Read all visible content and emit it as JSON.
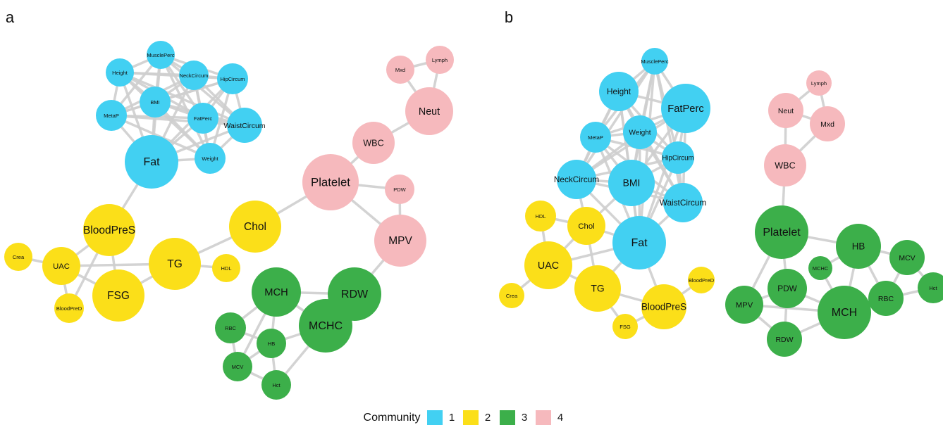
{
  "panels": [
    {
      "label": "a",
      "nodes": [
        {
          "label": "MusclePerc",
          "group": "1"
        },
        {
          "label": "Height",
          "group": "1"
        },
        {
          "label": "NeckCircum",
          "group": "1"
        },
        {
          "label": "HipCircum",
          "group": "1"
        },
        {
          "label": "BMI",
          "group": "1"
        },
        {
          "label": "MetaP",
          "group": "1"
        },
        {
          "label": "FatPerc",
          "group": "1"
        },
        {
          "label": "WaistCircum",
          "group": "1"
        },
        {
          "label": "Weight",
          "group": "1"
        },
        {
          "label": "Fat",
          "group": "1"
        },
        {
          "label": "BloodPreS",
          "group": "2"
        },
        {
          "label": "Crea",
          "group": "2"
        },
        {
          "label": "UAC",
          "group": "2"
        },
        {
          "label": "TG",
          "group": "2"
        },
        {
          "label": "HDL",
          "group": "2"
        },
        {
          "label": "Chol",
          "group": "2"
        },
        {
          "label": "FSG",
          "group": "2"
        },
        {
          "label": "BloodPreD",
          "group": "2"
        },
        {
          "label": "Mxd",
          "group": "4"
        },
        {
          "label": "Lymph",
          "group": "4"
        },
        {
          "label": "Neut",
          "group": "4"
        },
        {
          "label": "WBC",
          "group": "4"
        },
        {
          "label": "Platelet",
          "group": "4"
        },
        {
          "label": "PDW",
          "group": "4"
        },
        {
          "label": "MPV",
          "group": "4"
        },
        {
          "label": "RDW",
          "group": "3"
        },
        {
          "label": "MCH",
          "group": "3"
        },
        {
          "label": "MCHC",
          "group": "3"
        },
        {
          "label": "RBC",
          "group": "3"
        },
        {
          "label": "HB",
          "group": "3"
        },
        {
          "label": "MCV",
          "group": "3"
        },
        {
          "label": "Hct",
          "group": "3"
        }
      ]
    },
    {
      "label": "b",
      "nodes": [
        {
          "label": "MusclePerc",
          "group": "1"
        },
        {
          "label": "Height",
          "group": "1"
        },
        {
          "label": "FatPerc",
          "group": "1"
        },
        {
          "label": "MetaP",
          "group": "1"
        },
        {
          "label": "Weight",
          "group": "1"
        },
        {
          "label": "HipCircum",
          "group": "1"
        },
        {
          "label": "NeckCircum",
          "group": "1"
        },
        {
          "label": "BMI",
          "group": "1"
        },
        {
          "label": "WaistCircum",
          "group": "1"
        },
        {
          "label": "HDL",
          "group": "2"
        },
        {
          "label": "Chol",
          "group": "2"
        },
        {
          "label": "Fat",
          "group": "1"
        },
        {
          "label": "UAC",
          "group": "2"
        },
        {
          "label": "TG",
          "group": "2"
        },
        {
          "label": "BloodPreS",
          "group": "2"
        },
        {
          "label": "BloodPreD",
          "group": "2"
        },
        {
          "label": "Crea",
          "group": "2"
        },
        {
          "label": "FSG",
          "group": "2"
        },
        {
          "label": "Lymph",
          "group": "4"
        },
        {
          "label": "Neut",
          "group": "4"
        },
        {
          "label": "Mxd",
          "group": "4"
        },
        {
          "label": "WBC",
          "group": "4"
        },
        {
          "label": "Platelet",
          "group": "3"
        },
        {
          "label": "HB",
          "group": "3"
        },
        {
          "label": "MCV",
          "group": "3"
        },
        {
          "label": "MCHC",
          "group": "3"
        },
        {
          "label": "Hct",
          "group": "3"
        },
        {
          "label": "PDW",
          "group": "3"
        },
        {
          "label": "RBC",
          "group": "3"
        },
        {
          "label": "MPV",
          "group": "3"
        },
        {
          "label": "MCH",
          "group": "3"
        },
        {
          "label": "RDW",
          "group": "3"
        }
      ]
    }
  ],
  "legend": {
    "title": "Community",
    "items": [
      {
        "label": "1",
        "color": "#42d0f2"
      },
      {
        "label": "2",
        "color": "#fbdf19"
      },
      {
        "label": "3",
        "color": "#3caf4a"
      },
      {
        "label": "4",
        "color": "#f6b9bd"
      }
    ]
  }
}
